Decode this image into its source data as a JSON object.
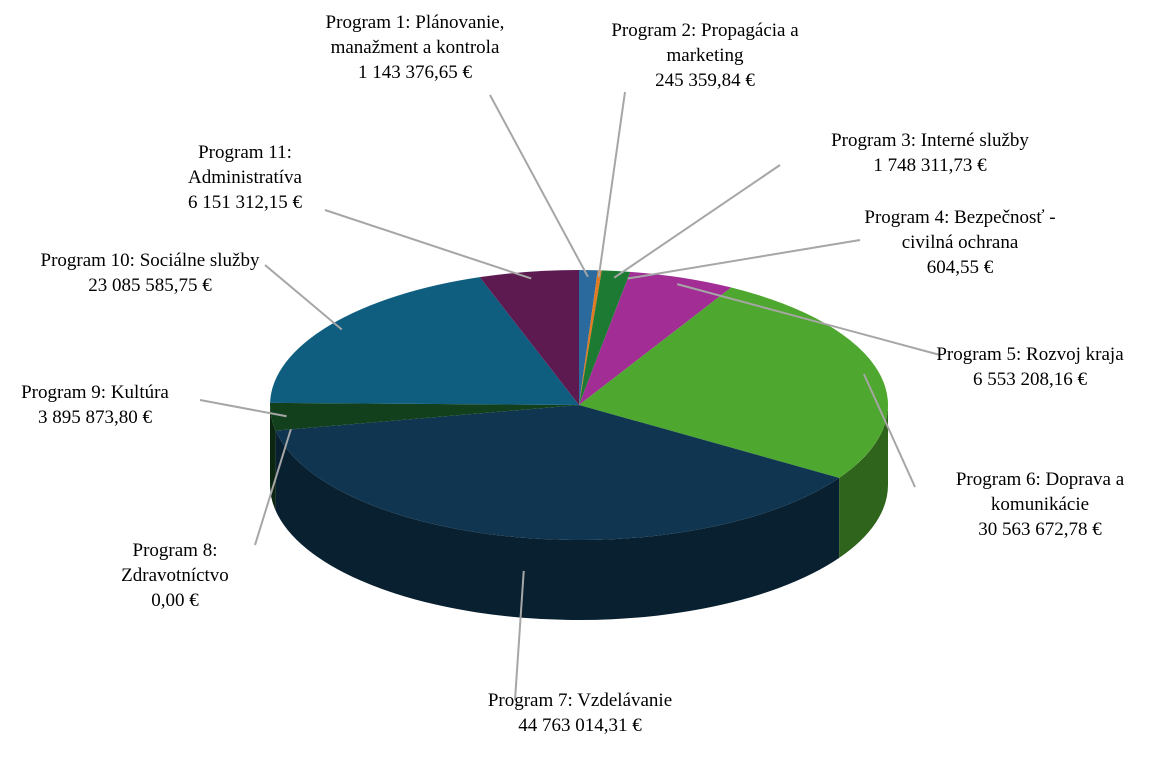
{
  "chart_data": {
    "type": "pie",
    "categories": [
      "Program 1: Plánovanie, manažment a kontrola",
      "Program 2: Propagácia a marketing",
      "Program 3: Interné služby",
      "Program 4: Bezpečnosť - civilná ochrana",
      "Program 5: Rozvoj kraja",
      "Program 6: Doprava a komunikácie",
      "Program 7: Vzdelávanie",
      "Program 8: Zdravotníctvo",
      "Program 9: Kultúra",
      "Program 10: Sociálne služby",
      "Program 11: Administratíva"
    ],
    "values": [
      1143376.65,
      245359.84,
      1748311.73,
      604.55,
      6553208.16,
      30563672.78,
      44763014.31,
      0.0,
      3895873.8,
      23085585.75,
      6151312.15
    ],
    "value_labels": [
      "1 143 376,65 €",
      "245 359,84 €",
      "1 748 311,73 €",
      "604,55 €",
      "6 553 208,16 €",
      "30 563 672,78 €",
      "44 763 014,31 €",
      "0,00 €",
      "3 895 873,80 €",
      "23 085 585,75 €",
      "6 151 312,15 €"
    ],
    "colors": [
      "#2a6a9c",
      "#e27a22",
      "#1d7a32",
      "#7a9a3a",
      "#a12d95",
      "#4ea72e",
      "#0f3550",
      "#888888",
      "#12401c",
      "#0f5e80",
      "#5c1a50"
    ]
  }
}
